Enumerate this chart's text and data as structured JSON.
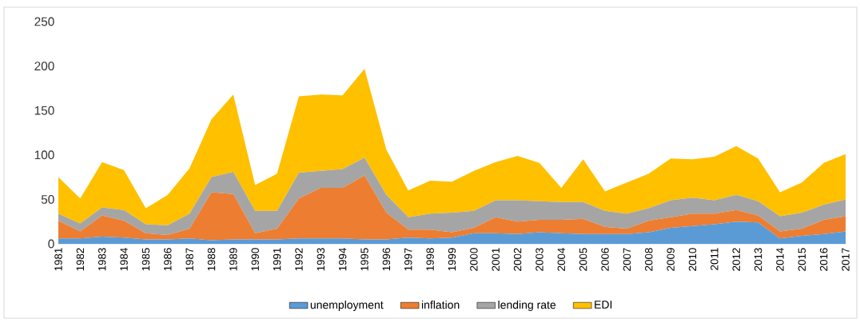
{
  "chart_data": {
    "type": "area",
    "stacked": true,
    "categories": [
      "1981",
      "1982",
      "1983",
      "1984",
      "1985",
      "1986",
      "1987",
      "1988",
      "1989",
      "1990",
      "1991",
      "1992",
      "1993",
      "1994",
      "1995",
      "1996",
      "1997",
      "1998",
      "1999",
      "2000",
      "2001",
      "2002",
      "2003",
      "2004",
      "2005",
      "2006",
      "2007",
      "2008",
      "2009",
      "2010",
      "2011",
      "2012",
      "2013",
      "2014",
      "2015",
      "2016",
      "2017"
    ],
    "series": [
      {
        "name": "unemployment",
        "color": "#5b9bd5",
        "values": [
          6,
          6,
          8,
          7,
          5,
          5,
          6,
          4,
          5,
          5,
          5,
          6,
          6,
          6,
          5,
          5,
          7,
          6,
          7,
          12,
          12,
          11,
          13,
          12,
          11,
          11,
          11,
          13,
          18,
          20,
          22,
          25,
          24,
          6,
          9,
          11,
          14
        ]
      },
      {
        "name": "inflation",
        "color": "#ed7d31",
        "values": [
          20,
          8,
          24,
          19,
          7,
          5,
          11,
          54,
          51,
          7,
          12,
          45,
          57,
          57,
          72,
          30,
          9,
          10,
          6,
          6,
          18,
          14,
          14,
          15,
          17,
          8,
          6,
          13,
          12,
          14,
          12,
          13,
          8,
          8,
          8,
          16,
          17
        ]
      },
      {
        "name": "lending rate",
        "color": "#a5a5a5",
        "values": [
          8,
          9,
          9,
          12,
          10,
          11,
          17,
          17,
          25,
          25,
          20,
          29,
          19,
          21,
          20,
          20,
          14,
          18,
          22,
          19,
          19,
          24,
          21,
          20,
          19,
          18,
          17,
          14,
          19,
          18,
          15,
          17,
          16,
          17,
          18,
          17,
          19
        ]
      },
      {
        "name": "EDI",
        "color": "#ffc000",
        "values": [
          41,
          28,
          51,
          45,
          18,
          34,
          51,
          65,
          87,
          29,
          42,
          86,
          86,
          83,
          100,
          51,
          30,
          37,
          35,
          45,
          43,
          50,
          43,
          16,
          48,
          22,
          35,
          39,
          47,
          43,
          49,
          55,
          48,
          27,
          34,
          47,
          51
        ]
      }
    ],
    "ylim": [
      0,
      250
    ],
    "yticks": [
      0,
      50,
      100,
      150,
      200,
      250
    ],
    "grid": false,
    "legend": "bottom"
  }
}
